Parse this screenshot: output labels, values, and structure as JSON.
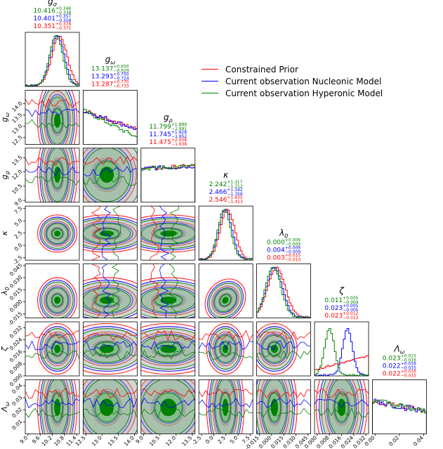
{
  "chart_data": {
    "type": "corner",
    "parameters": [
      {
        "key": "g_sigma",
        "label": "g_σ",
        "sym": "g",
        "sub": "σ",
        "range": [
          8.8,
          11.5
        ],
        "ticks": [
          "9.0",
          "9.6",
          "10.2",
          "10.8",
          "11.4"
        ],
        "tickVals": [
          9.0,
          9.6,
          10.2,
          10.8,
          11.4
        ],
        "mean": 10.4,
        "sd": 0.35
      },
      {
        "key": "g_omega",
        "label": "g_ω",
        "sym": "g",
        "sub": "ω",
        "range": [
          12.2,
          14.6
        ],
        "ticks": [
          "12.5",
          "13.0",
          "13.5",
          "14.0"
        ],
        "tickVals": [
          12.5,
          13.0,
          13.5,
          14.0
        ],
        "mean": 13.25,
        "sd": 0.7
      },
      {
        "key": "g_rho",
        "label": "g_ρ",
        "sym": "g",
        "sub": "ρ",
        "range": [
          8.8,
          14.5
        ],
        "ticks": [
          "9.0",
          "10.5",
          "12.0",
          "13.5"
        ],
        "tickVals": [
          9.0,
          10.5,
          12.0,
          13.5
        ],
        "mean": 11.7,
        "sd": 1.9
      },
      {
        "key": "kappa",
        "label": "κ",
        "sym": "κ",
        "sub": "",
        "range": [
          -3,
          8
        ],
        "ticks": [
          "-2.5",
          "0.0",
          "2.5",
          "5.0",
          "7.5"
        ],
        "tickVals": [
          -2.5,
          0,
          2.5,
          5,
          7.5
        ],
        "mean": 2.4,
        "sd": 1.35
      },
      {
        "key": "lambda0",
        "label": "λ_0",
        "sym": "λ",
        "sub": "0",
        "range": [
          -0.02,
          0.047
        ],
        "ticks": [
          "-0.015",
          "0.000",
          "0.015",
          "0.030",
          "0.045"
        ],
        "tickVals": [
          -0.015,
          0,
          0.015,
          0.03,
          0.045
        ],
        "mean": 0.002,
        "sd": 0.01
      },
      {
        "key": "zeta",
        "label": "ζ",
        "sym": "ζ",
        "sub": "",
        "range": [
          0.0,
          0.036
        ],
        "ticks": [
          "0.000",
          "0.008",
          "0.016",
          "0.024",
          "0.032"
        ],
        "tickVals": [
          0,
          0.008,
          0.016,
          0.024,
          0.032
        ],
        "mean": 0.018,
        "sd": 0.006
      },
      {
        "key": "lambda_omega",
        "label": "Λ_ω",
        "sym": "Λ",
        "sub": "ω",
        "range": [
          0.0,
          0.045
        ],
        "ticks": [
          "0.01",
          "0.02",
          "0.03",
          "0.04"
        ],
        "tickVals": [
          0.01,
          0.02,
          0.03,
          0.04
        ],
        "mean": 0.022,
        "sd": 0.016
      }
    ],
    "bottom_ticks": [
      {
        "ticks": [
          "9.0",
          "9.6",
          "10.2",
          "10.8",
          "11.4"
        ]
      },
      {
        "ticks": [
          "12.5",
          "13.0",
          "13.5",
          "14.0"
        ]
      },
      {
        "ticks": [
          "9.0",
          "10.5",
          "12.0",
          "13.5"
        ]
      },
      {
        "ticks": [
          "-2.5",
          "0.0",
          "2.5",
          "5.0",
          "7.5"
        ]
      },
      {
        "ticks": [
          "-0.015",
          "0.000",
          "0.015",
          "0.030",
          "0.045"
        ]
      },
      {
        "ticks": [
          "0.000",
          "0.008",
          "0.016",
          "0.024",
          "0.032"
        ]
      },
      {
        "ticks": [
          "0.00",
          "0.02",
          "0.04"
        ]
      }
    ],
    "series": [
      {
        "name": "Constrained Prior",
        "color": "#ff0000"
      },
      {
        "name": "Current observation Nucleonic Model",
        "color": "#0000ff"
      },
      {
        "name": "Current observation Hyperonic Model",
        "color": "#008000"
      }
    ],
    "summaries": [
      [
        [
          "10.416",
          "+0.346",
          "−0.338"
        ],
        [
          "10.401",
          "+0.357",
          "−0.358"
        ],
        [
          "10.351",
          "+0.378",
          "−0.375"
        ]
      ],
      [
        [
          "13.137",
          "+0.650",
          "−0.629"
        ],
        [
          "13.293",
          "+0.750",
          "−0.724"
        ],
        [
          "13.287",
          "+0.770",
          "−0.733"
        ]
      ],
      [
        [
          "11.799",
          "+1.889",
          "−1.991"
        ],
        [
          "11.745",
          "+1.928",
          "−1.952"
        ],
        [
          "11.475",
          "+2.008",
          "−1.938"
        ]
      ],
      [
        [
          "2.242",
          "+1.317",
          "−1.312"
        ],
        [
          "2.466",
          "+1.342",
          "−1.356"
        ],
        [
          "2.546",
          "+1.435",
          "−1.413"
        ]
      ],
      [
        [
          "0.000",
          "+0.009",
          "−0.009"
        ],
        [
          "0.004",
          "+0.009",
          "−0.009"
        ],
        [
          "0.003",
          "+0.010",
          "−0.010"
        ]
      ],
      [
        [
          "0.011",
          "+0.005",
          "−0.004"
        ],
        [
          "0.023",
          "+0.005",
          "−0.005"
        ],
        [
          "0.023",
          "+0.012",
          "−0.013"
        ]
      ],
      [
        [
          "0.023",
          "+0.015",
          "−0.016"
        ],
        [
          "0.022",
          "+0.016",
          "−0.015"
        ],
        [
          "0.022",
          "+0.016",
          "−0.015"
        ]
      ]
    ],
    "summary_colors": [
      "#008000",
      "#0000ff",
      "#ff0000"
    ],
    "zeta_hist_means": {
      "green": 0.01,
      "blue": 0.022,
      "red_slope": true
    }
  }
}
